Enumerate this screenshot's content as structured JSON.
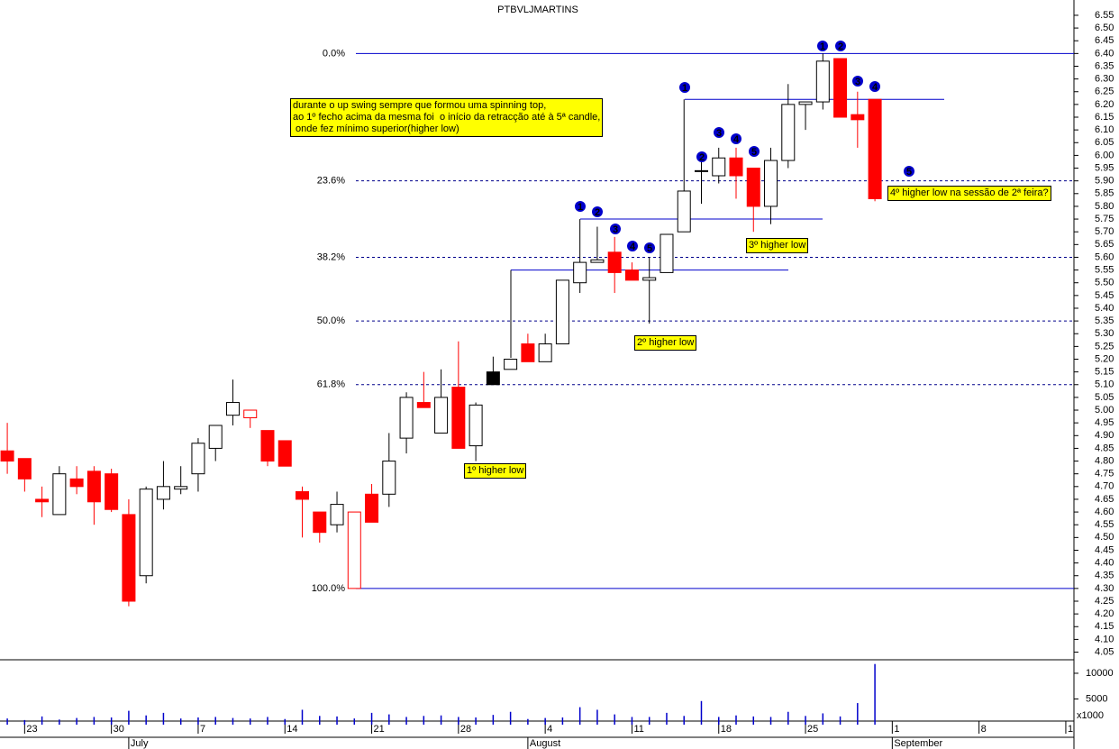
{
  "chart_data": {
    "type": "candlestick",
    "title": "PTBVLJMARTINS",
    "series": [
      {
        "open": [
          4.84,
          4.81,
          4.65,
          4.59,
          4.73,
          4.76,
          4.75,
          4.59,
          4.35,
          4.65,
          4.69,
          4.75,
          4.85,
          4.98,
          4.97,
          4.92,
          4.88,
          4.68,
          4.6,
          4.55,
          4.3,
          4.67,
          4.67,
          4.89,
          5.03,
          4.91,
          5.09,
          4.86,
          5.15,
          5.16,
          5.26,
          5.19,
          5.26,
          5.5,
          5.58,
          5.62,
          5.55,
          5.51,
          5.54,
          5.7,
          5.94,
          5.92,
          5.99,
          5.95,
          5.8,
          5.98,
          6.2,
          6.21,
          6.38,
          6.16,
          6.22
        ],
        "high": [
          4.95,
          4.81,
          4.7,
          4.78,
          4.78,
          4.78,
          4.77,
          4.65,
          4.7,
          4.8,
          4.78,
          4.89,
          4.94,
          5.12,
          5.0,
          4.92,
          4.88,
          4.7,
          4.6,
          4.68,
          4.6,
          4.71,
          4.91,
          5.07,
          5.15,
          5.16,
          5.27,
          5.03,
          5.21,
          5.2,
          5.3,
          5.3,
          5.51,
          5.75,
          5.72,
          5.68,
          5.58,
          5.6,
          5.69,
          6.22,
          5.99,
          6.03,
          6.03,
          5.95,
          6.03,
          6.28,
          6.21,
          6.4,
          6.38,
          6.25,
          6.22
        ],
        "low": [
          4.75,
          4.68,
          4.58,
          4.59,
          4.67,
          4.55,
          4.6,
          4.23,
          4.32,
          4.61,
          4.67,
          4.68,
          4.8,
          4.94,
          4.93,
          4.78,
          4.78,
          4.5,
          4.48,
          4.52,
          4.3,
          4.56,
          4.62,
          4.83,
          5.01,
          4.91,
          4.85,
          4.8,
          5.1,
          5.16,
          5.19,
          5.19,
          5.26,
          5.46,
          5.58,
          5.46,
          5.51,
          5.34,
          5.54,
          5.7,
          5.81,
          5.89,
          5.83,
          5.7,
          5.73,
          5.95,
          6.1,
          6.18,
          6.15,
          6.03,
          5.82
        ],
        "close": [
          4.8,
          4.73,
          4.64,
          4.75,
          4.7,
          4.64,
          4.61,
          4.25,
          4.69,
          4.7,
          4.7,
          4.87,
          4.94,
          5.03,
          5.0,
          4.8,
          4.78,
          4.65,
          4.52,
          4.63,
          4.6,
          4.56,
          4.8,
          5.05,
          5.01,
          5.05,
          4.85,
          5.02,
          5.1,
          5.2,
          5.19,
          5.26,
          5.51,
          5.58,
          5.59,
          5.54,
          5.51,
          5.52,
          5.69,
          5.86,
          5.94,
          5.99,
          5.92,
          5.8,
          5.98,
          6.2,
          6.21,
          6.37,
          6.15,
          6.14,
          5.83
        ],
        "volume": [
          1200,
          900,
          1600,
          1000,
          1300,
          1500,
          1400,
          2700,
          1800,
          2300,
          1200,
          1400,
          1500,
          1300,
          1200,
          1500,
          1100,
          2900,
          1700,
          1600,
          1200,
          2300,
          2000,
          1500,
          1700,
          1800,
          1500,
          1400,
          1900,
          2500,
          1100,
          1300,
          1400,
          3400,
          2900,
          2000,
          1500,
          1500,
          2300,
          1700,
          4600,
          1500,
          1800,
          1600,
          1500,
          2500,
          1700,
          2200,
          1600,
          4200,
          11800
        ]
      }
    ],
    "up_color": "#ffffff",
    "down_color": "#ff0000",
    "hold_color": "#000000",
    "xlim": [
      -0.42,
      61.47
    ],
    "xticks": [
      {
        "value": 1,
        "label": "23"
      },
      {
        "value": 6,
        "label": "30"
      },
      {
        "value": 11,
        "label": "7"
      },
      {
        "value": 16,
        "label": "14"
      },
      {
        "value": 21,
        "label": "21"
      },
      {
        "value": 26,
        "label": "28"
      },
      {
        "value": 31,
        "label": "4"
      },
      {
        "value": 36,
        "label": "11"
      },
      {
        "value": 41,
        "label": "18"
      },
      {
        "value": 46,
        "label": "25"
      },
      {
        "value": 51,
        "label": "1"
      },
      {
        "value": 56,
        "label": "8"
      },
      {
        "value": 61,
        "label": "1"
      }
    ],
    "months": [
      {
        "value": 7,
        "label": "July"
      },
      {
        "value": 30,
        "label": "August"
      },
      {
        "value": 51,
        "label": "September"
      }
    ],
    "ylim": [
      4.02,
      6.61
    ],
    "yticks": [
      4.05,
      {
        "value": 4.1,
        "label": "4.10"
      },
      4.15,
      {
        "value": 4.2,
        "label": "4.20"
      },
      4.25,
      {
        "value": 4.3,
        "label": "4.30"
      },
      4.35,
      {
        "value": 4.4,
        "label": "4.40"
      },
      4.45,
      {
        "value": 4.5,
        "label": "4.50"
      },
      4.55,
      {
        "value": 4.6,
        "label": "4.60"
      },
      4.65,
      {
        "value": 4.7,
        "label": "4.70"
      },
      4.75,
      {
        "value": 4.8,
        "label": "4.80"
      },
      4.85,
      {
        "value": 4.9,
        "label": "4.90"
      },
      4.95,
      {
        "value": 5.0,
        "label": "5.00"
      },
      5.05,
      {
        "value": 5.1,
        "label": "5.10"
      },
      5.15,
      {
        "value": 5.2,
        "label": "5.20"
      },
      5.25,
      {
        "value": 5.3,
        "label": "5.30"
      },
      5.35,
      {
        "value": 5.4,
        "label": "5.40"
      },
      5.45,
      {
        "value": 5.5,
        "label": "5.50"
      },
      5.55,
      {
        "value": 5.6,
        "label": "5.60"
      },
      5.65,
      {
        "value": 5.7,
        "label": "5.70"
      },
      5.75,
      {
        "value": 5.8,
        "label": "5.80"
      },
      5.85,
      {
        "value": 5.9,
        "label": "5.90"
      },
      5.95,
      {
        "value": 6.0,
        "label": "6.00"
      },
      6.05,
      {
        "value": 6.1,
        "label": "6.10"
      },
      6.15,
      {
        "value": 6.2,
        "label": "6.20"
      },
      6.25,
      {
        "value": 6.3,
        "label": "6.30"
      },
      6.35,
      {
        "value": 6.4,
        "label": "6.40"
      },
      6.45,
      {
        "value": 6.5,
        "label": "6.50"
      },
      6.55
    ],
    "volume_ylim": [
      0,
      12450
    ],
    "volume_yticks": [
      5000,
      10000
    ],
    "volume_unit": "x1000",
    "fib_levels": [
      {
        "label": "0.0%",
        "price": 6.4
      },
      {
        "label": "23.6%",
        "price": 5.9
      },
      {
        "label": "38.2%",
        "price": 5.6
      },
      {
        "label": "50.0%",
        "price": 5.35
      },
      {
        "label": "61.8%",
        "price": 5.1
      },
      {
        "label": "100.0%",
        "price": 4.3
      }
    ],
    "swing_levels": [
      5.55,
      5.75,
      6.22
    ],
    "markers": [
      "1",
      "2",
      "3",
      "4",
      "5",
      "1",
      "2",
      "3",
      "4",
      "5",
      "1",
      "2",
      "3",
      "4",
      "5"
    ],
    "notes": [
      {
        "lines": [
          "durante o up swing sempre que formou uma spinning top,",
          "ao 1º fecho acima da mesma foi  o início da retracção até à 5ª candle,",
          " onde fez mínimo superior(higher low)"
        ]
      },
      {
        "lines": [
          "1º higher low"
        ]
      },
      {
        "lines": [
          "2º higher low"
        ]
      },
      {
        "lines": [
          "3º higher low"
        ]
      },
      {
        "lines": [
          "4º higher low na sessão de 2ª feira?"
        ]
      }
    ]
  }
}
